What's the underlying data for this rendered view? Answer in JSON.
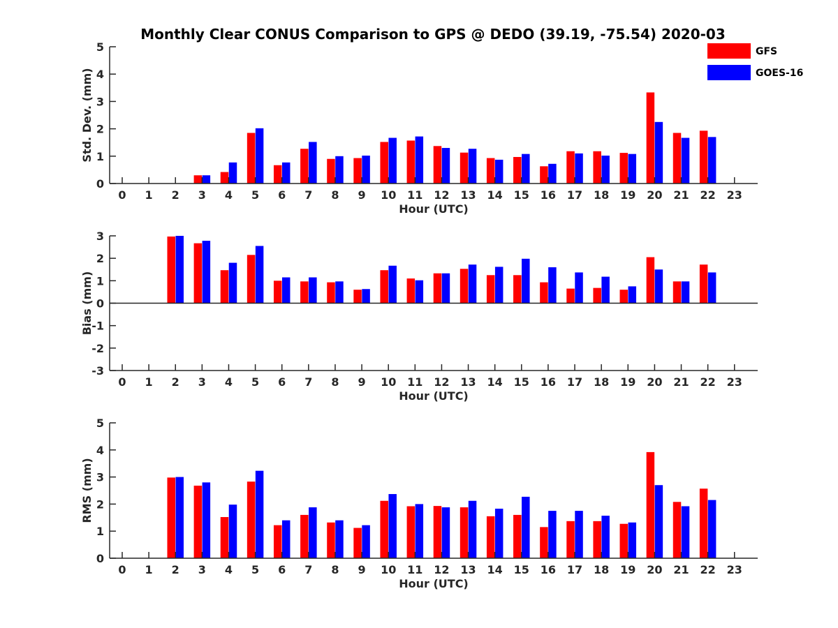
{
  "title": "Monthly Clear CONUS Comparison to GPS @ DEDO (39.19, -75.54) 2020-03",
  "legend": [
    {
      "name": "GFS",
      "color": "#ff0000"
    },
    {
      "name": "GOES-16",
      "color": "#0000ff"
    }
  ],
  "chart_data": [
    {
      "type": "bar",
      "ylabel": "Std. Dev. (mm)",
      "xlabel": "Hour (UTC)",
      "ylim": [
        0,
        5
      ],
      "yticks": [
        0,
        1,
        2,
        3,
        4,
        5
      ],
      "xticks": [
        0,
        1,
        2,
        3,
        4,
        5,
        6,
        7,
        8,
        9,
        10,
        11,
        12,
        13,
        14,
        15,
        16,
        17,
        18,
        19,
        20,
        21,
        22,
        23
      ],
      "series": [
        {
          "name": "GFS",
          "color": "#ff0000",
          "values": [
            null,
            null,
            null,
            0.3,
            0.42,
            1.85,
            0.67,
            1.27,
            0.9,
            0.93,
            1.52,
            1.57,
            1.37,
            1.13,
            0.93,
            0.97,
            0.63,
            1.18,
            1.18,
            1.12,
            3.33,
            1.85,
            1.93,
            null
          ]
        },
        {
          "name": "GOES-16",
          "color": "#0000ff",
          "values": [
            null,
            null,
            null,
            0.3,
            0.77,
            2.02,
            0.77,
            1.52,
            1.0,
            1.02,
            1.67,
            1.72,
            1.3,
            1.27,
            0.87,
            1.08,
            0.72,
            1.1,
            1.02,
            1.08,
            2.25,
            1.67,
            1.7,
            null
          ]
        }
      ]
    },
    {
      "type": "bar",
      "ylabel": "Bias (mm)",
      "xlabel": "Hour (UTC)",
      "ylim": [
        -3,
        3
      ],
      "yticks": [
        -3,
        -2,
        -1,
        0,
        1,
        2,
        3
      ],
      "xticks": [
        0,
        1,
        2,
        3,
        4,
        5,
        6,
        7,
        8,
        9,
        10,
        11,
        12,
        13,
        14,
        15,
        16,
        17,
        18,
        19,
        20,
        21,
        22,
        23
      ],
      "series": [
        {
          "name": "GFS",
          "color": "#ff0000",
          "values": [
            null,
            null,
            2.97,
            2.67,
            1.47,
            2.15,
            1.0,
            0.97,
            0.93,
            0.6,
            1.47,
            1.1,
            1.33,
            1.53,
            1.25,
            1.25,
            0.93,
            0.65,
            0.68,
            0.6,
            2.05,
            0.97,
            1.72,
            null
          ]
        },
        {
          "name": "GOES-16",
          "color": "#0000ff",
          "values": [
            null,
            null,
            3.0,
            2.78,
            1.8,
            2.55,
            1.15,
            1.15,
            0.97,
            0.63,
            1.67,
            1.02,
            1.33,
            1.72,
            1.62,
            1.98,
            1.6,
            1.37,
            1.18,
            0.75,
            1.5,
            0.97,
            1.37,
            null
          ]
        }
      ]
    },
    {
      "type": "bar",
      "ylabel": "RMS (mm)",
      "xlabel": "Hour (UTC)",
      "ylim": [
        0,
        5
      ],
      "yticks": [
        0,
        1,
        2,
        3,
        4,
        5
      ],
      "xticks": [
        0,
        1,
        2,
        3,
        4,
        5,
        6,
        7,
        8,
        9,
        10,
        11,
        12,
        13,
        14,
        15,
        16,
        17,
        18,
        19,
        20,
        21,
        22,
        23
      ],
      "series": [
        {
          "name": "GFS",
          "color": "#ff0000",
          "values": [
            null,
            null,
            2.98,
            2.68,
            1.52,
            2.83,
            1.22,
            1.6,
            1.32,
            1.12,
            2.12,
            1.92,
            1.93,
            1.88,
            1.55,
            1.6,
            1.15,
            1.37,
            1.37,
            1.27,
            3.92,
            2.08,
            2.57,
            null
          ]
        },
        {
          "name": "GOES-16",
          "color": "#0000ff",
          "values": [
            null,
            null,
            3.0,
            2.8,
            1.98,
            3.23,
            1.4,
            1.88,
            1.4,
            1.22,
            2.37,
            2.0,
            1.88,
            2.12,
            1.83,
            2.27,
            1.75,
            1.75,
            1.57,
            1.32,
            2.7,
            1.92,
            2.15,
            null
          ]
        }
      ]
    }
  ]
}
